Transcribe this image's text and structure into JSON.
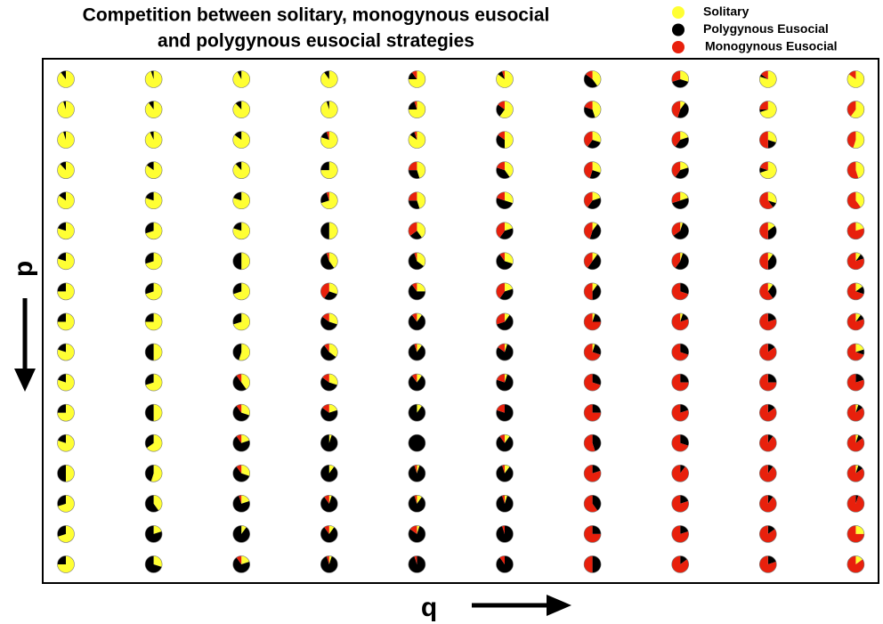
{
  "chart_data": {
    "type": "pie",
    "title": [
      "Competition between solitary, monogynous eusocial",
      "and polygynous eusocial strategies"
    ],
    "x_label": "q",
    "y_label": "p",
    "series": [
      {
        "name": "Solitary",
        "color": "#ffff33",
        "values": [
          90,
          95,
          92,
          90,
          75,
          85,
          40,
          30,
          80,
          85,
          95,
          90,
          88,
          95,
          75,
          60,
          45,
          10,
          70,
          60,
          95,
          93,
          85,
          80,
          85,
          50,
          30,
          20,
          30,
          55,
          88,
          85,
          88,
          75,
          45,
          40,
          30,
          20,
          70,
          45,
          85,
          80,
          80,
          70,
          45,
          30,
          20,
          20,
          30,
          40,
          80,
          70,
          80,
          50,
          40,
          20,
          10,
          5,
          15,
          20,
          80,
          70,
          50,
          40,
          35,
          30,
          10,
          5,
          10,
          10,
          75,
          70,
          70,
          30,
          25,
          20,
          10,
          0,
          10,
          15,
          75,
          75,
          70,
          30,
          10,
          10,
          5,
          5,
          0,
          10,
          80,
          50,
          55,
          35,
          10,
          5,
          5,
          0,
          0,
          20,
          80,
          70,
          40,
          30,
          10,
          5,
          0,
          0,
          0,
          0,
          75,
          50,
          30,
          20,
          10,
          0,
          0,
          0,
          0,
          5,
          80,
          65,
          20,
          5,
          0,
          10,
          0,
          0,
          0,
          5,
          50,
          55,
          30,
          10,
          5,
          10,
          0,
          0,
          0,
          5,
          70,
          40,
          20,
          5,
          10,
          5,
          0,
          0,
          0,
          0,
          70,
          20,
          10,
          10,
          5,
          0,
          0,
          0,
          0,
          25,
          75,
          30,
          20,
          5,
          0,
          0,
          0,
          0,
          0,
          15
        ]
      },
      {
        "name": "Polygynous Eusocial",
        "color": "#000000",
        "values": [
          10,
          5,
          8,
          10,
          15,
          10,
          45,
          40,
          5,
          0,
          5,
          10,
          12,
          5,
          20,
          25,
          35,
          45,
          5,
          0,
          5,
          7,
          15,
          15,
          10,
          35,
          30,
          40,
          20,
          0,
          12,
          15,
          12,
          25,
          30,
          40,
          25,
          40,
          10,
          0,
          15,
          20,
          20,
          25,
          30,
          50,
          40,
          50,
          10,
          0,
          20,
          30,
          20,
          50,
          25,
          40,
          45,
          60,
          35,
          0,
          20,
          30,
          50,
          55,
          60,
          60,
          50,
          55,
          40,
          10,
          25,
          30,
          30,
          30,
          65,
          40,
          40,
          30,
          30,
          15,
          25,
          25,
          30,
          55,
          80,
          60,
          20,
          15,
          20,
          10,
          20,
          50,
          45,
          55,
          85,
          80,
          25,
          30,
          15,
          10,
          20,
          30,
          50,
          55,
          80,
          75,
          30,
          25,
          25,
          20,
          25,
          50,
          60,
          65,
          90,
          80,
          25,
          20,
          15,
          10,
          20,
          35,
          70,
          95,
          100,
          80,
          45,
          30,
          10,
          10,
          50,
          45,
          60,
          90,
          90,
          85,
          20,
          10,
          10,
          10,
          30,
          60,
          75,
          85,
          85,
          90,
          40,
          20,
          10,
          5,
          30,
          80,
          90,
          80,
          80,
          95,
          25,
          20,
          15,
          0,
          25,
          70,
          70,
          90,
          95,
          90,
          50,
          15,
          20,
          0
        ]
      },
      {
        "name": "Monogynous Eusocial",
        "color": "#e8200c",
        "values": [
          0,
          0,
          0,
          0,
          10,
          5,
          15,
          30,
          15,
          15,
          0,
          0,
          0,
          0,
          5,
          15,
          20,
          45,
          25,
          40,
          0,
          0,
          0,
          5,
          5,
          15,
          40,
          40,
          50,
          45,
          0,
          0,
          0,
          0,
          25,
          20,
          45,
          40,
          20,
          55,
          0,
          0,
          0,
          5,
          25,
          20,
          40,
          30,
          60,
          60,
          0,
          0,
          0,
          0,
          35,
          40,
          45,
          35,
          50,
          80,
          0,
          0,
          0,
          5,
          5,
          10,
          40,
          40,
          50,
          80,
          0,
          0,
          0,
          40,
          10,
          40,
          50,
          70,
          60,
          70,
          0,
          0,
          0,
          15,
          10,
          30,
          75,
          80,
          80,
          80,
          0,
          0,
          0,
          10,
          5,
          15,
          70,
          70,
          85,
          70,
          0,
          0,
          10,
          15,
          10,
          20,
          70,
          75,
          75,
          80,
          0,
          0,
          10,
          15,
          0,
          20,
          75,
          80,
          85,
          85,
          0,
          0,
          10,
          0,
          0,
          10,
          55,
          70,
          90,
          85,
          0,
          0,
          10,
          0,
          5,
          5,
          80,
          90,
          90,
          85,
          0,
          0,
          5,
          10,
          5,
          5,
          60,
          80,
          90,
          95,
          0,
          0,
          0,
          10,
          15,
          5,
          75,
          80,
          85,
          75,
          0,
          0,
          10,
          5,
          5,
          10,
          50,
          85,
          80,
          85
        ]
      }
    ]
  }
}
